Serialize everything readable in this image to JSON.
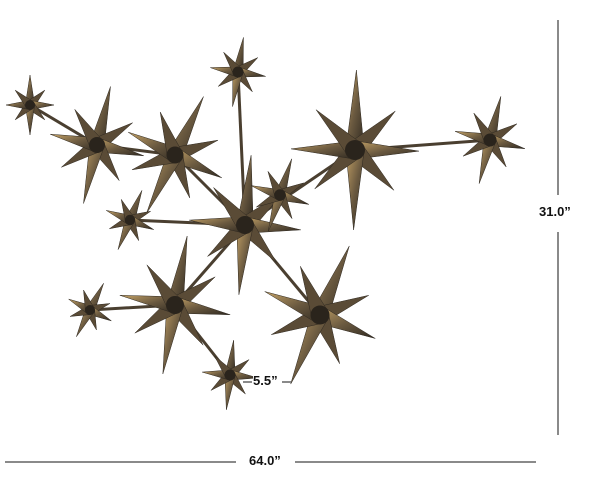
{
  "product": {
    "description_icon": "metal-starburst-wall-art",
    "colors": {
      "metal_light": "#b8955a",
      "metal_dark": "#3a3128",
      "dimension_line": "#8a8a8a"
    }
  },
  "dimensions": {
    "height_label": "31.0”",
    "width_label": "64.0”",
    "star_label": "5.5”"
  }
}
